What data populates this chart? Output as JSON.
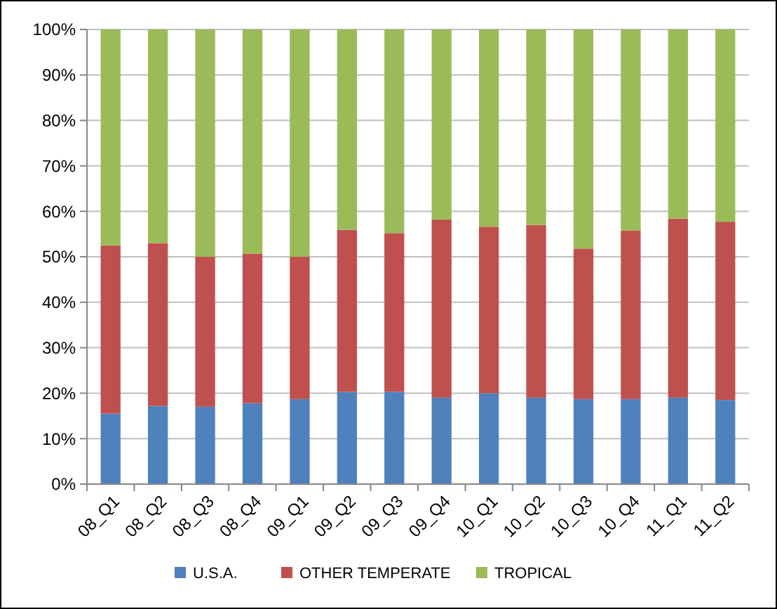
{
  "chart_data": {
    "type": "bar",
    "stacked": true,
    "categories": [
      "08_Q1",
      "08_Q2",
      "08_Q3",
      "08_Q4",
      "09_Q1",
      "09_Q2",
      "09_Q3",
      "09_Q4",
      "10_Q1",
      "10_Q2",
      "10_Q3",
      "10_Q4",
      "11_Q1",
      "11_Q2"
    ],
    "series": [
      {
        "name": "U.S.A.",
        "color": "#4f81bd",
        "values": [
          15.5,
          17.2,
          17,
          17.8,
          18.7,
          20.3,
          20.3,
          19,
          20,
          19,
          18.7,
          18.7,
          19,
          18.5
        ]
      },
      {
        "name": "OTHER TEMPERATE",
        "color": "#c0504d",
        "values": [
          37,
          35.8,
          33,
          32.9,
          31.3,
          35.6,
          34.9,
          39.2,
          36.6,
          38,
          33.1,
          37.1,
          39.4,
          39.2
        ]
      },
      {
        "name": "TROPICAL",
        "color": "#9bbb59",
        "values": [
          47.5,
          47,
          50,
          49.3,
          50,
          44.1,
          44.8,
          41.8,
          43.4,
          43,
          48.2,
          44.2,
          41.6,
          42.3
        ]
      }
    ],
    "ylim": [
      0,
      100
    ],
    "yticks": [
      {
        "value": 0,
        "label": "0%"
      },
      {
        "value": 10,
        "label": "10%"
      },
      {
        "value": 20,
        "label": "20%"
      },
      {
        "value": 30,
        "label": "30%"
      },
      {
        "value": 40,
        "label": "40%"
      },
      {
        "value": 50,
        "label": "50%"
      },
      {
        "value": 60,
        "label": "60%"
      },
      {
        "value": 70,
        "label": "70%"
      },
      {
        "value": 80,
        "label": "80%"
      },
      {
        "value": 90,
        "label": "90%"
      },
      {
        "value": 100,
        "label": "100%"
      }
    ],
    "grid": "y",
    "legend": "bottom"
  }
}
